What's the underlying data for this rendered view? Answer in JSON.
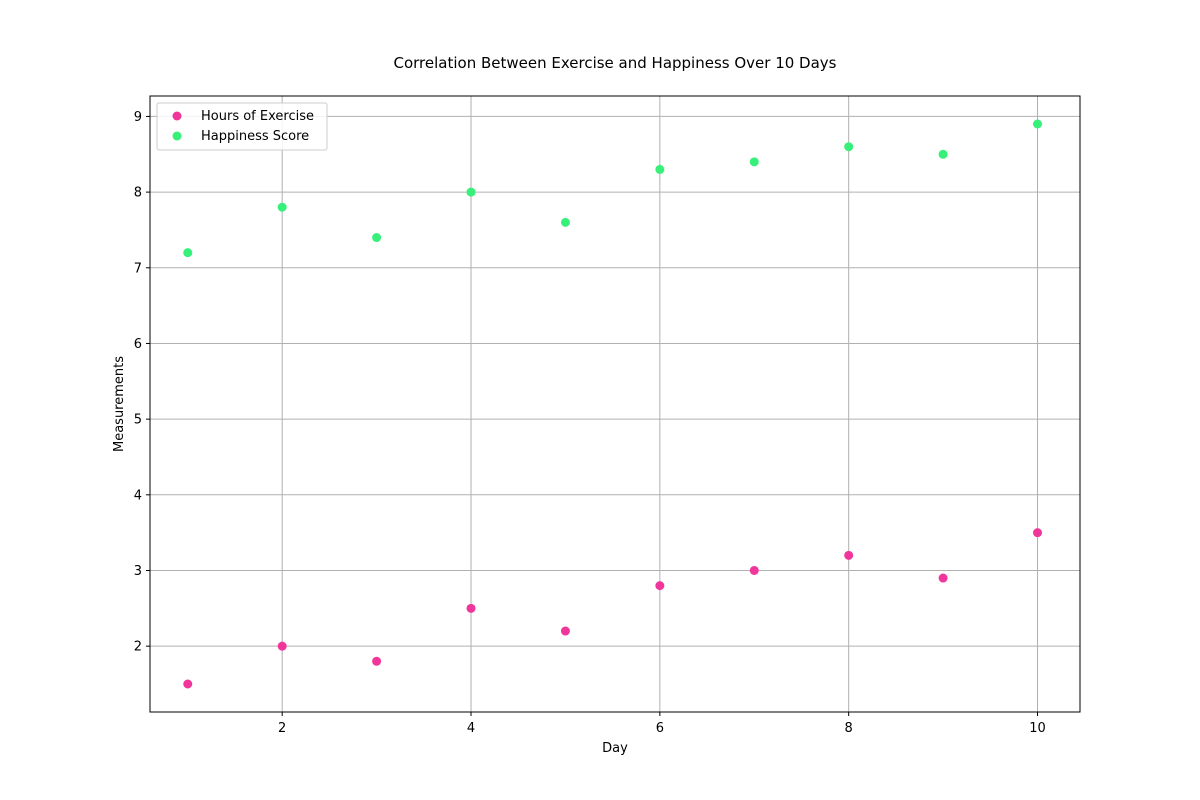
{
  "chart_data": {
    "type": "scatter",
    "title": "Correlation Between Exercise and Happiness Over 10 Days",
    "xlabel": "Day",
    "ylabel": "Measurements",
    "xlim": [
      0.6,
      10.45
    ],
    "ylim": [
      1.13,
      9.27
    ],
    "xticks": [
      2,
      4,
      6,
      8,
      10
    ],
    "yticks": [
      2,
      3,
      4,
      5,
      6,
      7,
      8,
      9
    ],
    "grid": true,
    "legend_position": "upper-left",
    "x": [
      1,
      2,
      3,
      4,
      5,
      6,
      7,
      8,
      9,
      10
    ],
    "series": [
      {
        "name": "Hours of Exercise",
        "color": "#f0359b",
        "values": [
          1.5,
          2.0,
          1.8,
          2.5,
          2.2,
          2.8,
          3.0,
          3.2,
          2.9,
          3.5
        ]
      },
      {
        "name": "Happiness Score",
        "color": "#36f07a",
        "values": [
          7.2,
          7.8,
          7.4,
          8.0,
          7.6,
          8.3,
          8.4,
          8.6,
          8.5,
          8.9
        ]
      }
    ]
  }
}
